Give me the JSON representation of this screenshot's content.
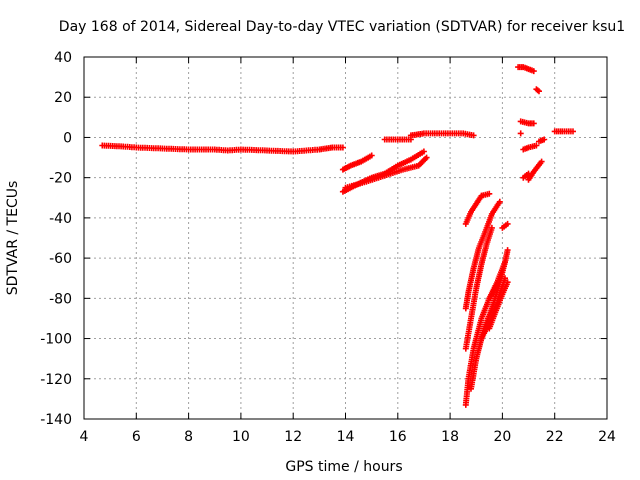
{
  "chart_data": {
    "type": "scatter",
    "title": "Day 168 of 2014, Sidereal Day-to-day VTEC variation (SDTVAR) for receiver ksu1",
    "xlabel": "GPS time / hours",
    "ylabel": "SDTVAR / TECUs",
    "xlim": [
      4,
      24
    ],
    "ylim": [
      -140,
      40
    ],
    "xticks": [
      4,
      6,
      8,
      10,
      12,
      14,
      16,
      18,
      20,
      22,
      24
    ],
    "yticks": [
      40,
      20,
      0,
      -20,
      -40,
      -60,
      -80,
      -100,
      -120,
      -140
    ],
    "grid": true,
    "marker": "+",
    "color": "#ff0000",
    "segments": [
      {
        "x": [
          4.7,
          5.5,
          6.0,
          7.0,
          8.0,
          9.0,
          9.5,
          10.0,
          11.0,
          12.0,
          12.5,
          13.0,
          13.5,
          13.9
        ],
        "y": [
          -4,
          -4.5,
          -5,
          -5.5,
          -6,
          -6,
          -6.5,
          -6,
          -6.5,
          -7,
          -6.5,
          -6,
          -5,
          -5
        ]
      },
      {
        "x": [
          13.9,
          14.2,
          14.6,
          15.0
        ],
        "y": [
          -16,
          -14,
          -12,
          -9
        ]
      },
      {
        "x": [
          13.9,
          14.5,
          15.0,
          15.5,
          16.0,
          16.5,
          17.0
        ],
        "y": [
          -27,
          -23,
          -20,
          -18,
          -14,
          -11,
          -7
        ]
      },
      {
        "x": [
          14.0,
          14.8,
          15.5,
          16.2,
          16.8,
          17.1
        ],
        "y": [
          -25,
          -22,
          -19,
          -16,
          -14,
          -10
        ]
      },
      {
        "x": [
          15.5,
          16.5
        ],
        "y": [
          -1,
          -1
        ]
      },
      {
        "x": [
          16.5,
          17.0,
          17.5,
          18.0,
          18.5,
          18.9
        ],
        "y": [
          1,
          2,
          2,
          2,
          2,
          1
        ]
      },
      {
        "x": [
          18.6,
          18.8,
          19.0,
          19.2
        ],
        "y": [
          -43,
          -37,
          -33,
          -29
        ]
      },
      {
        "x": [
          19.2,
          19.5
        ],
        "y": [
          -29,
          -28
        ]
      },
      {
        "x": [
          18.6,
          18.7,
          18.9,
          19.1,
          19.4,
          19.6,
          19.9
        ],
        "y": [
          -85,
          -77,
          -65,
          -55,
          -45,
          -38,
          -32
        ]
      },
      {
        "x": [
          18.6,
          18.8,
          19.0,
          19.2,
          19.4,
          19.6
        ],
        "y": [
          -105,
          -90,
          -75,
          -63,
          -53,
          -45
        ]
      },
      {
        "x": [
          18.6,
          18.7,
          18.9,
          19.2,
          19.5,
          19.8,
          20.1,
          20.2
        ],
        "y": [
          -133,
          -120,
          -105,
          -90,
          -80,
          -72,
          -62,
          -56
        ]
      },
      {
        "x": [
          18.8,
          19.0,
          19.3,
          19.6,
          19.9,
          20.1
        ],
        "y": [
          -125,
          -110,
          -95,
          -85,
          -72,
          -62
        ]
      },
      {
        "x": [
          19.2,
          19.5,
          19.8,
          20.1
        ],
        "y": [
          -100,
          -92,
          -82,
          -70
        ]
      },
      {
        "x": [
          19.5,
          19.7,
          20.0,
          20.2
        ],
        "y": [
          -95,
          -88,
          -78,
          -72
        ]
      },
      {
        "x": [
          20.0,
          20.2
        ],
        "y": [
          -45,
          -43
        ]
      },
      {
        "x": [
          20.6,
          20.8,
          21.0,
          21.2
        ],
        "y": [
          35,
          35,
          34,
          33
        ]
      },
      {
        "x": [
          21.3,
          21.4
        ],
        "y": [
          24,
          23
        ]
      },
      {
        "x": [
          20.7,
          21.0,
          21.2
        ],
        "y": [
          8,
          7,
          7
        ]
      },
      {
        "x": [
          20.7
        ],
        "y": [
          2
        ]
      },
      {
        "x": [
          20.8,
          21.0,
          21.3
        ],
        "y": [
          -6,
          -5,
          -4
        ]
      },
      {
        "x": [
          20.8,
          21.0
        ],
        "y": [
          -20,
          -18
        ]
      },
      {
        "x": [
          21.0,
          21.2,
          21.5
        ],
        "y": [
          -21,
          -17,
          -12
        ]
      },
      {
        "x": [
          21.4,
          21.6
        ],
        "y": [
          -2,
          -1
        ]
      },
      {
        "x": [
          22.0,
          22.3,
          22.7
        ],
        "y": [
          3,
          3,
          3
        ]
      }
    ]
  }
}
